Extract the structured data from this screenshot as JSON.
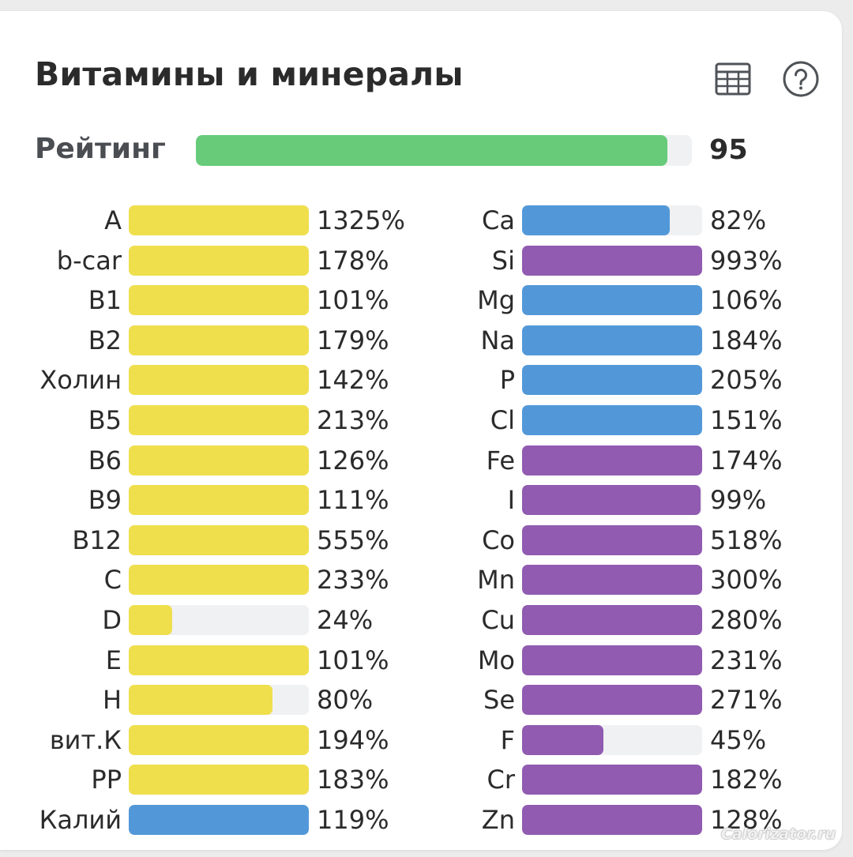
{
  "title": "Витамины и минералы",
  "icons": {
    "table": "table-icon",
    "help": "help-icon"
  },
  "rating": {
    "label": "Рейтинг",
    "value": "95",
    "percent": 95
  },
  "colors": {
    "rating": "#67cb7a",
    "yellow": "#efdf4d",
    "blue": "#5298d8",
    "purple": "#905bb0",
    "track": "#f0f1f3"
  },
  "vitamins": [
    {
      "label": "A",
      "value": "1325%",
      "pct": 1325,
      "color": "yellow"
    },
    {
      "label": "b-car",
      "value": "178%",
      "pct": 178,
      "color": "yellow"
    },
    {
      "label": "B1",
      "value": "101%",
      "pct": 101,
      "color": "yellow"
    },
    {
      "label": "B2",
      "value": "179%",
      "pct": 179,
      "color": "yellow"
    },
    {
      "label": "Холин",
      "value": "142%",
      "pct": 142,
      "color": "yellow"
    },
    {
      "label": "B5",
      "value": "213%",
      "pct": 213,
      "color": "yellow"
    },
    {
      "label": "B6",
      "value": "126%",
      "pct": 126,
      "color": "yellow"
    },
    {
      "label": "B9",
      "value": "111%",
      "pct": 111,
      "color": "yellow"
    },
    {
      "label": "B12",
      "value": "555%",
      "pct": 555,
      "color": "yellow"
    },
    {
      "label": "C",
      "value": "233%",
      "pct": 233,
      "color": "yellow"
    },
    {
      "label": "D",
      "value": "24%",
      "pct": 24,
      "color": "yellow"
    },
    {
      "label": "E",
      "value": "101%",
      "pct": 101,
      "color": "yellow"
    },
    {
      "label": "H",
      "value": "80%",
      "pct": 80,
      "color": "yellow"
    },
    {
      "label": "вит.К",
      "value": "194%",
      "pct": 194,
      "color": "yellow"
    },
    {
      "label": "PP",
      "value": "183%",
      "pct": 183,
      "color": "yellow"
    },
    {
      "label": "Калий",
      "value": "119%",
      "pct": 119,
      "color": "blue"
    }
  ],
  "minerals": [
    {
      "label": "Ca",
      "value": "82%",
      "pct": 82,
      "color": "blue"
    },
    {
      "label": "Si",
      "value": "993%",
      "pct": 993,
      "color": "purple"
    },
    {
      "label": "Mg",
      "value": "106%",
      "pct": 106,
      "color": "blue"
    },
    {
      "label": "Na",
      "value": "184%",
      "pct": 184,
      "color": "blue"
    },
    {
      "label": "P",
      "value": "205%",
      "pct": 205,
      "color": "blue"
    },
    {
      "label": "Cl",
      "value": "151%",
      "pct": 151,
      "color": "blue"
    },
    {
      "label": "Fe",
      "value": "174%",
      "pct": 174,
      "color": "purple"
    },
    {
      "label": "I",
      "value": "99%",
      "pct": 99,
      "color": "purple"
    },
    {
      "label": "Co",
      "value": "518%",
      "pct": 518,
      "color": "purple"
    },
    {
      "label": "Mn",
      "value": "300%",
      "pct": 300,
      "color": "purple"
    },
    {
      "label": "Cu",
      "value": "280%",
      "pct": 280,
      "color": "purple"
    },
    {
      "label": "Mo",
      "value": "231%",
      "pct": 231,
      "color": "purple"
    },
    {
      "label": "Se",
      "value": "271%",
      "pct": 271,
      "color": "purple"
    },
    {
      "label": "F",
      "value": "45%",
      "pct": 45,
      "color": "purple"
    },
    {
      "label": "Cr",
      "value": "182%",
      "pct": 182,
      "color": "purple"
    },
    {
      "label": "Zn",
      "value": "128%",
      "pct": 128,
      "color": "purple"
    }
  ],
  "watermark": "Calorizator.ru"
}
